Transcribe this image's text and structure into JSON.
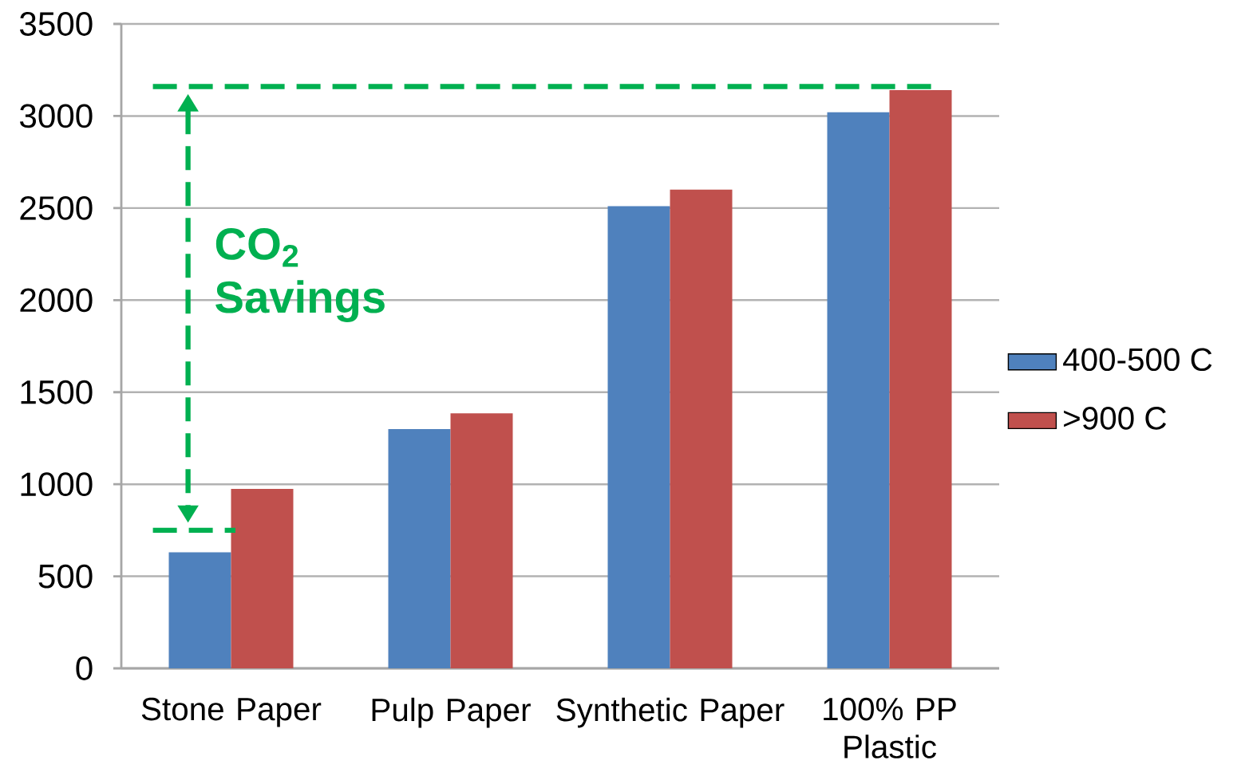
{
  "chart_data": {
    "type": "bar",
    "categories": [
      "Stone Paper",
      "Pulp Paper",
      "Synthetic Paper",
      "100% PP Plastic"
    ],
    "series": [
      {
        "name": "400-500 C",
        "color": "#4f81bd",
        "values": [
          630,
          1300,
          2510,
          3020
        ]
      },
      {
        "name": ">900 C",
        "color": "#c0504d",
        "values": [
          975,
          1385,
          2600,
          3140
        ]
      }
    ],
    "ylim": [
      0,
      3500
    ],
    "yticks": [
      0,
      500,
      1000,
      1500,
      2000,
      2500,
      3000,
      3500
    ],
    "grid": "y",
    "legend": "right",
    "ref_lines": [
      {
        "axis": "y",
        "value": 3160,
        "color": "#00b050",
        "line_style": "dashed"
      },
      {
        "axis": "y",
        "value": 750,
        "color": "#00b050",
        "line_style": "dashed"
      }
    ],
    "annotations": [
      "CO$_{2}$ Savings"
    ]
  }
}
